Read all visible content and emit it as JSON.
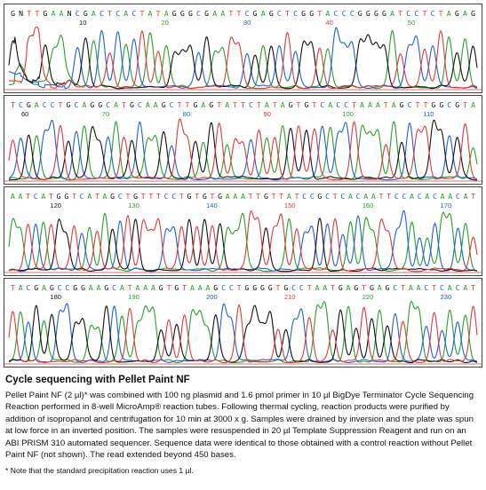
{
  "chart_data": {
    "type": "line",
    "title": "",
    "xlabel": "",
    "ylabel": "",
    "base_colors": {
      "A": "#2aa02a",
      "C": "#2060d8",
      "G": "#111111",
      "T": "#e03a3a"
    },
    "panels": [
      {
        "sequence": "GNTTGAANCGACTCACTATAGGGCGAATTCGAGCTCGGTACCCGGGGATCCTCTAGAG",
        "ticks": [
          10,
          20,
          30,
          40,
          50
        ],
        "x_range": [
          1,
          58
        ]
      },
      {
        "sequence": "TCGACCTGCAGGCATGCAAGCTTGAGTATTCTATAGTGTCACCTAAATAGCTTGGCGTA",
        "ticks": [
          60,
          70,
          80,
          90,
          100,
          110
        ],
        "x_range": [
          58,
          116
        ]
      },
      {
        "sequence": "AATCATGGTCATAGCTGTTTCCTGTGTGAAATTGTTATCCGCTCACAATTCCACACAACAT",
        "ticks": [
          120,
          130,
          140,
          150,
          160,
          170
        ],
        "x_range": [
          114,
          174
        ]
      },
      {
        "sequence": "TACGAGCCGGAAGCATAAAGTGTAAAGCCTGGGGTGCCTAATGAGTGAGCTAACTCACAT",
        "ticks": [
          180,
          190,
          200,
          210,
          220,
          230
        ],
        "x_range": [
          174,
          234
        ]
      }
    ]
  },
  "caption": {
    "title": "Cycle sequencing with Pellet Paint NF",
    "body": "Pellet Paint NF (2 µl)* was combined with 100 ng plasmid and 1.6 pmol primer in 10 µl BigDye Terminator Cycle Sequencing Reaction performed in 8-well MicroAmp® reaction tubes. Following thermal cycling, reaction products were purified by addition of isopropanol and centrifugation for 10 min at 3000 x g. Samples were drained by inversion and the plate was spun at low force in an inverted position. The samples were resuspended in 20 µl Template Suppression Reagent and run on an ABI PRISM 310 automated sequencer. Sequence data were identical to those obtained with a control reaction without Pellet Paint NF (not shown). The read extended beyond 450 bases.",
    "footnote": "* Note that the standard precipitation reaction uses 1 µl."
  }
}
